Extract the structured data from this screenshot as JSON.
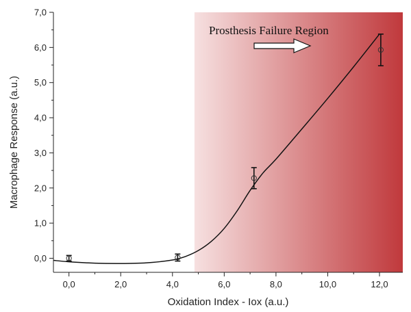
{
  "chart_data": {
    "type": "scatter",
    "title": "",
    "xlabel": "Oxidation Index - Iox (a.u.)",
    "ylabel": "Macrophage Response (a.u.)",
    "xlim": [
      -0.6,
      12.9
    ],
    "ylim": [
      -0.4,
      7.0
    ],
    "x_ticks": [
      0,
      2,
      4,
      6,
      8,
      10,
      12
    ],
    "x_tick_labels": [
      "0,0",
      "2,0",
      "4,0",
      "6,0",
      "8,0",
      "10,0",
      "12,0"
    ],
    "y_ticks": [
      0,
      1,
      2,
      3,
      4,
      5,
      6,
      7
    ],
    "y_tick_labels": [
      "0,0",
      "1,0",
      "2,0",
      "3,0",
      "4,0",
      "5,0",
      "6,0",
      "7,0"
    ],
    "grid": false,
    "series": [
      {
        "points": [
          {
            "x": 0.0,
            "y": 0.0,
            "err": 0.08
          },
          {
            "x": 4.2,
            "y": 0.02,
            "err": 0.1
          },
          {
            "x": 7.15,
            "y": 2.28,
            "err": 0.3
          },
          {
            "x": 12.05,
            "y": 5.93,
            "err": 0.45
          }
        ],
        "marker": "open-circle",
        "fit_curve": {
          "x": [
            -0.6,
            0.0,
            1.0,
            2.0,
            3.0,
            4.0,
            4.5,
            5.0,
            5.5,
            6.0,
            6.5,
            7.0,
            7.5,
            8.0,
            9.0,
            10.0,
            11.0,
            12.0
          ],
          "y": [
            -0.06,
            -0.1,
            -0.14,
            -0.15,
            -0.13,
            -0.05,
            0.05,
            0.22,
            0.48,
            0.85,
            1.35,
            1.93,
            2.43,
            2.82,
            3.68,
            4.55,
            5.45,
            6.38
          ]
        }
      }
    ],
    "region": {
      "x_start": 4.85,
      "x_end": 12.9,
      "color_start": "#f6e0e0",
      "color_end": "#c0393c"
    },
    "annotation": {
      "text": "Prosthesis Failure Region",
      "arrow": "right"
    },
    "colors": {
      "line": "#111111",
      "marker": "#333333"
    }
  }
}
